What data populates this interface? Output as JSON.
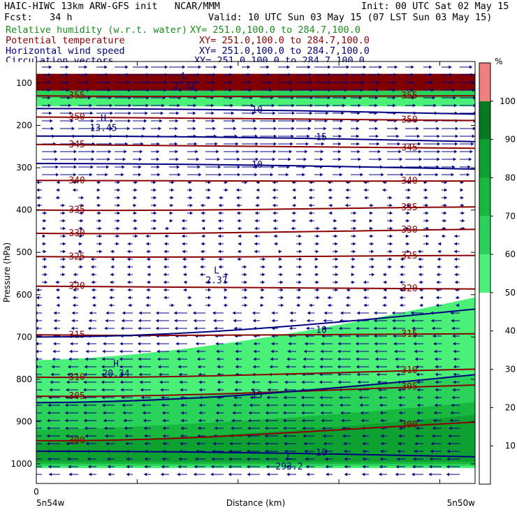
{
  "header": {
    "line1_left": "HAIC-HIWC 13km ARW-GFS init   NCAR/MMM",
    "line1_right": "Init: 00 UTC Sat 02 May 15",
    "line2_left": "Fcst:   34 h",
    "line2_right": "Valid: 10 UTC Sun 03 May 15 (07 LST Sun 03 May 15)",
    "fields": [
      {
        "name": "Relative humidity (w.r.t. water)",
        "xy": "XY= 251.0,100.0 to 284.7,100.0",
        "color": "#1a8c1a"
      },
      {
        "name": "Potential temperature",
        "xy": "XY= 251.0,100.0 to 284.7,100.0",
        "color": "#8b0000"
      },
      {
        "name": "Horizontal wind speed",
        "xy": "XY= 251.0,100.0 to 284.7,100.0",
        "color": "#000080"
      },
      {
        "name": "Circulation vectors",
        "xy": "XY= 251.0,100.0 to 284.7,100.0",
        "color": "#000080"
      }
    ]
  },
  "chart_data": {
    "type": "heatmap",
    "ylabel": "Pressure (hPa)",
    "xlabel": "Distance (km)",
    "x_tick_labels": [
      "0"
    ],
    "x_end_labels": [
      "5n54w",
      "5n50w"
    ],
    "y_ticks": [
      100,
      200,
      300,
      400,
      500,
      600,
      700,
      800,
      900,
      1000
    ],
    "y_range": [
      1050,
      70
    ],
    "colorbar": {
      "unit": "%",
      "levels": [
        10,
        20,
        30,
        40,
        50,
        60,
        70,
        80,
        90,
        100
      ],
      "colors": {
        "50-60": "#4bf079",
        "60-70": "#2ad25a",
        "70-80": "#18b83e",
        "80-90": "#0ea030",
        "90-100": "#067a20",
        "100+": "#800000",
        "top": "#f08080"
      }
    },
    "humidity_regions": [
      {
        "top_hpa": 78,
        "bottom_hpa": 118,
        "band": "100+"
      },
      {
        "top_hpa": 118,
        "bottom_hpa": 135,
        "band": "60-70"
      },
      {
        "top_hpa": 135,
        "bottom_hpa": 155,
        "band": "50-60"
      },
      {
        "top_hpa": 755,
        "bottom_hpa": 1010,
        "band": "50-60"
      },
      {
        "top_hpa": 855,
        "bottom_hpa": 1005,
        "band": "60-70"
      },
      {
        "top_hpa": 920,
        "bottom_hpa": 1000,
        "band": "70-80"
      },
      {
        "top_hpa": 950,
        "bottom_hpa": 995,
        "band": "80-90"
      }
    ],
    "theta_contours": [
      {
        "label": "355",
        "hpa": 130
      },
      {
        "label": "350",
        "hpa": 180
      },
      {
        "label": "345",
        "hpa": 245
      },
      {
        "label": "340",
        "hpa": 330
      },
      {
        "label": "335",
        "hpa": 400
      },
      {
        "label": "330",
        "hpa": 455
      },
      {
        "label": "325",
        "hpa": 510
      },
      {
        "label": "320",
        "hpa": 580
      },
      {
        "label": "315",
        "hpa": 695
      },
      {
        "label": "310",
        "hpa": 795
      },
      {
        "label": "305",
        "hpa": 840
      },
      {
        "label": "300",
        "hpa": 945
      }
    ],
    "wind_contours": [
      {
        "label": "10",
        "hpa": 160
      },
      {
        "label": "15",
        "hpa": 225
      },
      {
        "label": "10",
        "hpa": 290
      },
      {
        "label": "10",
        "hpa": 700
      },
      {
        "label": "15",
        "hpa": 855
      },
      {
        "label": "10",
        "hpa": 970
      }
    ],
    "annotations": [
      {
        "symbol": "H",
        "value": "13.45",
        "hpa": 200
      },
      {
        "symbol": "L",
        "value": "2.37",
        "hpa": 560
      },
      {
        "symbol": "H",
        "value": "20.34",
        "hpa": 780
      },
      {
        "symbol": "L",
        "value": "293.2",
        "hpa": 1000
      },
      {
        "symbol": "L",
        "value": "2.32",
        "hpa": 100
      }
    ]
  }
}
